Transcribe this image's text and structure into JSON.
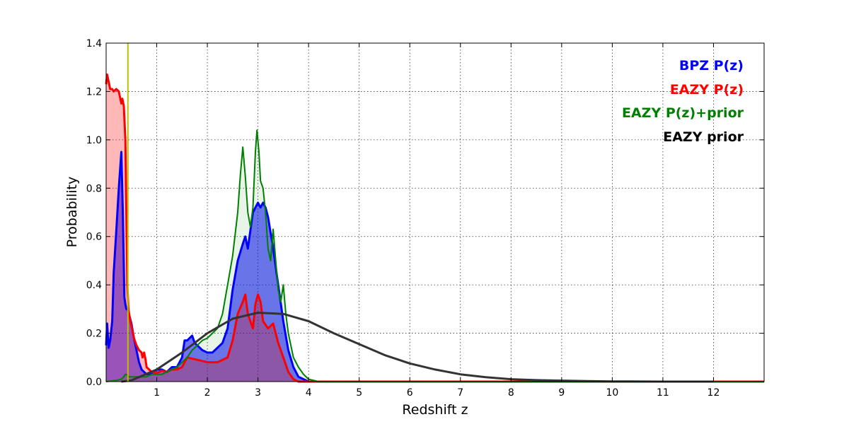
{
  "chart_data": {
    "type": "line",
    "xlabel": "Redshift z",
    "ylabel": "Probability",
    "xlim": [
      0,
      13
    ],
    "ylim": [
      0,
      1.4
    ],
    "xticks": [
      1,
      2,
      3,
      4,
      5,
      6,
      7,
      8,
      9,
      10,
      11,
      12
    ],
    "yticks": [
      0.0,
      0.2,
      0.4,
      0.6,
      0.8,
      1.0,
      1.2,
      1.4
    ],
    "grid": true,
    "legend_position": "top-right",
    "vline": {
      "x": 0.43,
      "color": "#bfbf00"
    },
    "colors": {
      "bpz": "#0000ff",
      "eazy": "#ff0000",
      "eazy_prior_combo": "#008000",
      "prior": "#333333"
    },
    "series": [
      {
        "name": "BPZ P(z)",
        "color": "#0000ff",
        "fill": "rgba(0,0,255,0.55)",
        "x": [
          0,
          0.02,
          0.05,
          0.08,
          0.12,
          0.15,
          0.2,
          0.25,
          0.3,
          0.33,
          0.36,
          0.38,
          0.4,
          0.42,
          0.45,
          0.5,
          0.55,
          0.6,
          0.65,
          0.7,
          0.8,
          0.9,
          1.0,
          1.1,
          1.2,
          1.3,
          1.4,
          1.5,
          1.55,
          1.6,
          1.7,
          1.75,
          1.8,
          1.9,
          2.0,
          2.1,
          2.2,
          2.3,
          2.4,
          2.5,
          2.6,
          2.7,
          2.75,
          2.8,
          2.9,
          3.0,
          3.05,
          3.1,
          3.15,
          3.2,
          3.3,
          3.4,
          3.5,
          3.6,
          3.7,
          3.8,
          4.0,
          5.0,
          13.0
        ],
        "values": [
          0.15,
          0.24,
          0.14,
          0.17,
          0.25,
          0.45,
          0.62,
          0.8,
          0.95,
          0.7,
          0.35,
          0.32,
          0.3,
          0.3,
          0.28,
          0.24,
          0.18,
          0.13,
          0.08,
          0.05,
          0.03,
          0.035,
          0.05,
          0.05,
          0.04,
          0.06,
          0.06,
          0.1,
          0.17,
          0.17,
          0.19,
          0.16,
          0.15,
          0.13,
          0.12,
          0.12,
          0.14,
          0.16,
          0.22,
          0.38,
          0.5,
          0.57,
          0.6,
          0.55,
          0.7,
          0.74,
          0.72,
          0.74,
          0.72,
          0.68,
          0.55,
          0.4,
          0.25,
          0.13,
          0.06,
          0.02,
          0.0,
          0.0,
          0.0
        ]
      },
      {
        "name": "EAZY P(z)",
        "color": "#ff0000",
        "fill": "rgba(255,0,0,0.28)",
        "x": [
          0,
          0.02,
          0.05,
          0.08,
          0.12,
          0.15,
          0.2,
          0.25,
          0.3,
          0.32,
          0.35,
          0.38,
          0.4,
          0.42,
          0.44,
          0.47,
          0.5,
          0.55,
          0.6,
          0.65,
          0.7,
          0.72,
          0.75,
          0.78,
          0.8,
          0.9,
          1.0,
          1.1,
          1.2,
          1.3,
          1.4,
          1.5,
          1.55,
          1.6,
          1.8,
          2.0,
          2.2,
          2.4,
          2.5,
          2.6,
          2.7,
          2.75,
          2.8,
          2.9,
          2.95,
          3.0,
          3.05,
          3.1,
          3.2,
          3.3,
          3.4,
          3.5,
          3.6,
          3.7,
          3.8,
          4.0,
          13.0
        ],
        "values": [
          1.23,
          1.27,
          1.24,
          1.21,
          1.21,
          1.2,
          1.21,
          1.2,
          1.15,
          1.17,
          1.14,
          1.0,
          0.7,
          0.4,
          0.3,
          0.26,
          0.23,
          0.18,
          0.15,
          0.13,
          0.12,
          0.1,
          0.12,
          0.09,
          0.06,
          0.04,
          0.035,
          0.045,
          0.04,
          0.05,
          0.05,
          0.06,
          0.08,
          0.1,
          0.09,
          0.08,
          0.08,
          0.1,
          0.17,
          0.28,
          0.33,
          0.36,
          0.28,
          0.22,
          0.32,
          0.36,
          0.33,
          0.25,
          0.22,
          0.24,
          0.16,
          0.1,
          0.04,
          0.01,
          0.0,
          0.0,
          0.0
        ]
      },
      {
        "name": "EAZY P(z)+prior",
        "color": "#008000",
        "fill": "rgba(0,128,0,0.09)",
        "x": [
          0,
          0.2,
          0.3,
          0.35,
          0.38,
          0.4,
          0.45,
          0.5,
          0.6,
          0.7,
          0.8,
          0.9,
          1.0,
          1.1,
          1.2,
          1.3,
          1.4,
          1.5,
          1.6,
          1.7,
          1.8,
          1.9,
          2.0,
          2.1,
          2.2,
          2.3,
          2.4,
          2.5,
          2.6,
          2.65,
          2.7,
          2.75,
          2.8,
          2.85,
          2.9,
          2.95,
          2.98,
          3.02,
          3.05,
          3.1,
          3.15,
          3.2,
          3.25,
          3.3,
          3.35,
          3.4,
          3.45,
          3.5,
          3.55,
          3.6,
          3.7,
          3.8,
          3.9,
          4.0,
          4.2,
          13.0
        ],
        "values": [
          0.0,
          0.005,
          0.01,
          0.02,
          0.03,
          0.03,
          0.02,
          0.02,
          0.02,
          0.02,
          0.02,
          0.03,
          0.03,
          0.03,
          0.04,
          0.05,
          0.06,
          0.08,
          0.1,
          0.13,
          0.15,
          0.17,
          0.18,
          0.2,
          0.22,
          0.28,
          0.4,
          0.52,
          0.7,
          0.85,
          0.97,
          0.85,
          0.7,
          0.64,
          0.72,
          0.95,
          1.04,
          0.95,
          0.83,
          0.8,
          0.7,
          0.55,
          0.5,
          0.63,
          0.5,
          0.38,
          0.33,
          0.4,
          0.28,
          0.2,
          0.1,
          0.06,
          0.03,
          0.01,
          0.0,
          0.0
        ]
      },
      {
        "name": "EAZY prior",
        "color": "#333333",
        "fill": "rgba(0,0,0,0)",
        "x": [
          0.3,
          0.5,
          1.0,
          1.5,
          2.0,
          2.5,
          3.0,
          3.5,
          4.0,
          4.5,
          5.0,
          5.5,
          6.0,
          6.5,
          7.0,
          7.5,
          8.0,
          8.5,
          9.0,
          9.5,
          10.0,
          11.0,
          12.0
        ],
        "values": [
          0.0,
          0.005,
          0.05,
          0.12,
          0.2,
          0.26,
          0.285,
          0.28,
          0.25,
          0.2,
          0.155,
          0.11,
          0.075,
          0.05,
          0.03,
          0.018,
          0.01,
          0.006,
          0.004,
          0.002,
          0.001,
          0.0,
          0.0
        ]
      }
    ],
    "legend": [
      {
        "label": "BPZ P(z)",
        "color": "#0000ff"
      },
      {
        "label": "EAZY P(z)",
        "color": "#ff0000"
      },
      {
        "label": "EAZY P(z)+prior",
        "color": "#008000"
      },
      {
        "label": "EAZY prior",
        "color": "#000000"
      }
    ]
  }
}
